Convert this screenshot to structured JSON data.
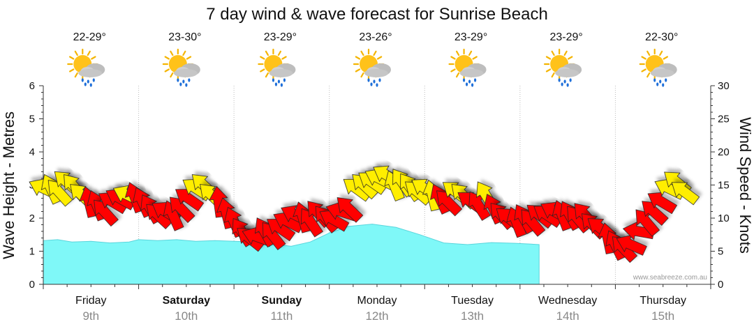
{
  "chart_data": {
    "type": "area",
    "title": "7 day wind & wave forecast for Sunrise Beach",
    "ylabel_left": "Wave Height - Metres",
    "ylabel_right": "Wind Speed - Knots",
    "ylim_left": [
      0,
      6
    ],
    "ylim_right": [
      0,
      30
    ],
    "left_ticks": [
      "0",
      "1",
      "2",
      "3",
      "4",
      "5",
      "6"
    ],
    "right_ticks": [
      "0",
      "5",
      "10",
      "15",
      "20",
      "25",
      "30"
    ],
    "grid": true,
    "watermark": "www.seabreeze.com.au",
    "days": [
      {
        "name": "Friday",
        "date": "9th",
        "temp": "22-29°",
        "bold": false
      },
      {
        "name": "Saturday",
        "date": "10th",
        "temp": "23-30°",
        "bold": true
      },
      {
        "name": "Sunday",
        "date": "11th",
        "temp": "23-29°",
        "bold": true
      },
      {
        "name": "Monday",
        "date": "12th",
        "temp": "23-26°",
        "bold": false
      },
      {
        "name": "Tuesday",
        "date": "13th",
        "temp": "23-29°",
        "bold": false
      },
      {
        "name": "Wednesday",
        "date": "14th",
        "temp": "23-29°",
        "bold": false
      },
      {
        "name": "Thursday",
        "date": "15th",
        "temp": "22-30°",
        "bold": false
      }
    ],
    "wave_height": {
      "x_days": [
        0,
        0.15,
        0.3,
        0.5,
        0.7,
        0.9,
        1.0,
        1.2,
        1.4,
        1.6,
        1.8,
        2.0,
        2.2,
        2.4,
        2.6,
        2.8,
        3.0,
        3.2,
        3.45,
        3.7,
        3.95,
        4.2,
        4.45,
        4.7,
        4.95,
        5.1,
        5.2
      ],
      "values": [
        1.32,
        1.35,
        1.28,
        1.3,
        1.25,
        1.28,
        1.35,
        1.32,
        1.35,
        1.3,
        1.32,
        1.3,
        1.28,
        1.22,
        1.15,
        1.28,
        1.55,
        1.75,
        1.82,
        1.72,
        1.5,
        1.25,
        1.2,
        1.26,
        1.24,
        1.22,
        1.2
      ]
    },
    "wind": {
      "x_days": [
        0.0,
        0.08,
        0.16,
        0.24,
        0.32,
        0.4,
        0.48,
        0.56,
        0.64,
        0.72,
        0.8,
        0.88,
        0.96,
        1.04,
        1.12,
        1.2,
        1.28,
        1.36,
        1.44,
        1.52,
        1.6,
        1.68,
        1.76,
        1.84,
        1.92,
        2.0,
        2.08,
        2.16,
        2.24,
        2.32,
        2.4,
        2.48,
        2.56,
        2.64,
        2.72,
        2.8,
        2.88,
        2.96,
        3.04,
        3.12,
        3.2,
        3.28,
        3.36,
        3.44,
        3.52,
        3.6,
        3.68,
        3.76,
        3.84,
        3.92,
        4.0,
        4.08,
        4.16,
        4.24,
        4.32,
        4.4,
        4.48,
        4.56,
        4.64,
        4.72,
        4.8,
        4.88,
        4.96,
        5.04,
        5.12,
        5.2,
        5.28,
        5.36,
        5.44,
        5.52,
        5.6,
        5.68,
        5.76,
        5.84,
        5.92,
        6.0,
        6.08,
        6.16,
        6.24,
        6.32,
        6.4,
        6.48,
        6.56,
        6.64,
        6.72
      ],
      "knots": [
        14.5,
        14.5,
        14.0,
        15.5,
        14.8,
        13.5,
        12.5,
        12.0,
        11.0,
        12.5,
        13.0,
        13.5,
        13.2,
        12.5,
        11.5,
        10.5,
        11.0,
        10.5,
        11.5,
        13.0,
        14.5,
        15.0,
        13.5,
        12.5,
        10.8,
        9.5,
        8.0,
        7.0,
        7.2,
        8.0,
        7.5,
        8.5,
        9.5,
        10.5,
        10.2,
        9.5,
        10.8,
        10.0,
        9.8,
        11.0,
        11.5,
        14.5,
        15.0,
        15.5,
        16.0,
        16.5,
        15.0,
        15.5,
        14.8,
        14.0,
        14.5,
        13.5,
        13.0,
        12.5,
        14.0,
        13.5,
        12.5,
        12.0,
        13.5,
        11.5,
        10.5,
        10.0,
        9.5,
        10.0,
        9.5,
        10.5,
        10.5,
        11.0,
        10.5,
        10.5,
        10.0,
        10.5,
        9.0,
        8.5,
        7.0,
        6.0,
        5.5,
        6.0,
        8.0,
        9.5,
        11.0,
        12.5,
        14.5,
        15.5,
        14.0
      ],
      "strong_threshold_knots": 13.5,
      "colors": {
        "light": "#ffee00",
        "strong": "#ff0000"
      }
    },
    "colors": {
      "wave": "#7ff8f8",
      "wave_stroke": "#59d5dc",
      "grid": "#bbbbbb",
      "axis": "#333333"
    }
  }
}
